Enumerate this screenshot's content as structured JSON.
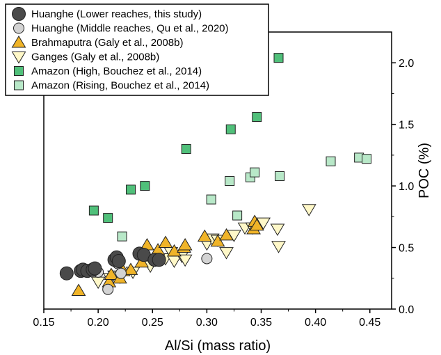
{
  "chart_data": {
    "type": "scatter",
    "xlabel": "Al/Si (mass ratio)",
    "ylabel": "POC (%)",
    "xlim": [
      0.15,
      0.47
    ],
    "ylim": [
      0.0,
      2.25
    ],
    "x_ticks": [
      "0.15",
      "0.20",
      "0.25",
      "0.30",
      "0.35",
      "0.40",
      "0.45"
    ],
    "y_ticks": [
      "0.0",
      "0.5",
      "1.0",
      "1.5",
      "2.0"
    ],
    "y_axis_side": "right",
    "legend_position": "top-left",
    "grid": false,
    "series": [
      {
        "name": "Huanghe (Lower reaches, this study)",
        "marker": "circle-large",
        "color": "#4a4a4a",
        "points": [
          [
            0.171,
            0.29
          ],
          [
            0.184,
            0.31
          ],
          [
            0.186,
            0.32
          ],
          [
            0.19,
            0.31
          ],
          [
            0.195,
            0.32
          ],
          [
            0.197,
            0.33
          ],
          [
            0.215,
            0.4
          ],
          [
            0.217,
            0.42
          ],
          [
            0.219,
            0.39
          ],
          [
            0.238,
            0.45
          ],
          [
            0.242,
            0.44
          ],
          [
            0.252,
            0.4
          ],
          [
            0.256,
            0.4
          ]
        ]
      },
      {
        "name": "Huanghe (Middle reaches, Qu et al., 2020)",
        "marker": "circle",
        "color": "#d3d3d3",
        "points": [
          [
            0.2,
            0.3
          ],
          [
            0.209,
            0.16
          ],
          [
            0.218,
            0.37
          ],
          [
            0.221,
            0.29
          ],
          [
            0.3,
            0.41
          ]
        ]
      },
      {
        "name": "Brahmaputra (Galy et al., 2008b)",
        "marker": "triangle-up",
        "color": "#f0b428",
        "points": [
          [
            0.182,
            0.15
          ],
          [
            0.21,
            0.22
          ],
          [
            0.212,
            0.28
          ],
          [
            0.22,
            0.25
          ],
          [
            0.223,
            0.31
          ],
          [
            0.23,
            0.32
          ],
          [
            0.24,
            0.38
          ],
          [
            0.245,
            0.52
          ],
          [
            0.255,
            0.48
          ],
          [
            0.262,
            0.54
          ],
          [
            0.27,
            0.47
          ],
          [
            0.279,
            0.5
          ],
          [
            0.28,
            0.52
          ],
          [
            0.298,
            0.59
          ],
          [
            0.31,
            0.55
          ],
          [
            0.318,
            0.6
          ],
          [
            0.343,
            0.65
          ],
          [
            0.344,
            0.71
          ],
          [
            0.346,
            0.68
          ]
        ]
      },
      {
        "name": "Ganges (Galy et al., 2008b)",
        "marker": "triangle-down",
        "color": "#fff8c8",
        "points": [
          [
            0.2,
            0.22
          ],
          [
            0.211,
            0.25
          ],
          [
            0.215,
            0.27
          ],
          [
            0.22,
            0.26
          ],
          [
            0.232,
            0.3
          ],
          [
            0.248,
            0.35
          ],
          [
            0.262,
            0.41
          ],
          [
            0.267,
            0.46
          ],
          [
            0.27,
            0.39
          ],
          [
            0.277,
            0.43
          ],
          [
            0.28,
            0.4
          ],
          [
            0.3,
            0.53
          ],
          [
            0.305,
            0.57
          ],
          [
            0.31,
            0.56
          ],
          [
            0.318,
            0.46
          ],
          [
            0.325,
            0.6
          ],
          [
            0.335,
            0.66
          ],
          [
            0.342,
            0.66
          ],
          [
            0.352,
            0.7
          ],
          [
            0.365,
            0.65
          ],
          [
            0.366,
            0.51
          ],
          [
            0.394,
            0.81
          ]
        ]
      },
      {
        "name": "Amazon (High, Bouchez et al., 2014)",
        "marker": "square",
        "color": "#50c07a",
        "points": [
          [
            0.196,
            0.8
          ],
          [
            0.209,
            0.74
          ],
          [
            0.23,
            0.97
          ],
          [
            0.243,
            1.0
          ],
          [
            0.281,
            1.3
          ],
          [
            0.322,
            1.46
          ],
          [
            0.346,
            1.56
          ],
          [
            0.366,
            2.04
          ]
        ]
      },
      {
        "name": "Amazon (Rising, Bouchez et al., 2014)",
        "marker": "square",
        "color": "#b8e8c8",
        "points": [
          [
            0.222,
            0.59
          ],
          [
            0.304,
            0.89
          ],
          [
            0.321,
            1.04
          ],
          [
            0.328,
            0.76
          ],
          [
            0.34,
            1.07
          ],
          [
            0.344,
            1.11
          ],
          [
            0.367,
            1.08
          ],
          [
            0.414,
            1.2
          ],
          [
            0.44,
            1.23
          ],
          [
            0.447,
            1.22
          ]
        ]
      }
    ]
  }
}
